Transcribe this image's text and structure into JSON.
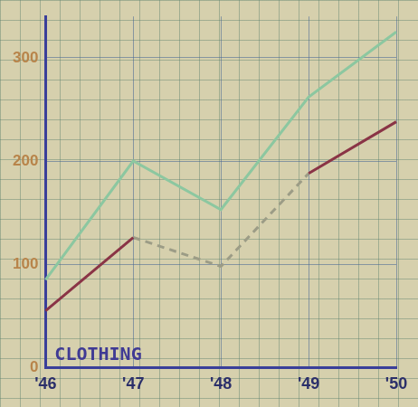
{
  "chart_data": {
    "type": "line",
    "annotation": "CLOTHING",
    "categories": [
      "'46",
      "'47",
      "'48",
      "'49",
      "'50"
    ],
    "series": [
      {
        "color": "#8cc7a0",
        "values": [
          85,
          200,
          153,
          262,
          325
        ],
        "line_style": "solid"
      },
      {
        "color": "#8a3446",
        "values": [
          55,
          126,
          null,
          188,
          238
        ],
        "line_style": "solid"
      },
      {
        "color": "#9c9c86",
        "values": [
          null,
          126,
          98,
          188,
          null
        ],
        "line_style": "dashed"
      }
    ],
    "ylim": [
      0,
      340
    ],
    "yticks": [
      0,
      100,
      200,
      300
    ],
    "grid": true
  }
}
